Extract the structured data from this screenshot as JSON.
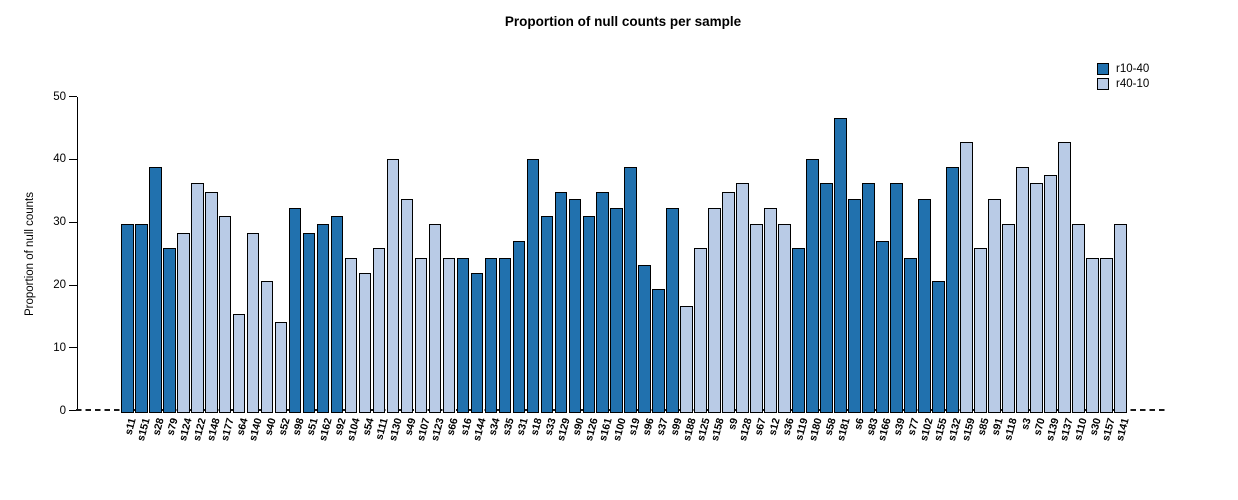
{
  "title": "Proportion of null counts per sample",
  "ylabel": "Proportion of null counts",
  "legend": {
    "items": [
      {
        "label": "r10-40",
        "color": "#2171ae"
      },
      {
        "label": "r40-10",
        "color": "#b9cbe6"
      }
    ]
  },
  "chart_data": {
    "type": "bar",
    "title": "Proportion of null counts per sample",
    "xlabel": "",
    "ylabel": "Proportion of null counts",
    "ylim": [
      0,
      50
    ],
    "yticks": [
      0,
      10,
      20,
      30,
      40,
      50
    ],
    "grid": false,
    "legend_position": "top-right",
    "series_names": [
      "r10-40",
      "r40-10"
    ],
    "colors": {
      "r10-40": "#2171ae",
      "r40-10": "#b9cbe6"
    },
    "categories": [
      "s11",
      "s151",
      "s28",
      "s79",
      "s124",
      "s122",
      "s148",
      "s177",
      "s64",
      "s140",
      "s40",
      "s52",
      "s98",
      "s51",
      "s162",
      "s92",
      "s104",
      "s54",
      "s111",
      "s130",
      "s49",
      "s107",
      "s123",
      "s66",
      "s16",
      "s144",
      "s34",
      "s35",
      "s31",
      "s18",
      "s33",
      "s129",
      "s90",
      "s126",
      "s161",
      "s100",
      "s19",
      "s96",
      "s37",
      "s99",
      "s188",
      "s125",
      "s158",
      "s9",
      "s128",
      "s67",
      "s12",
      "s36",
      "s119",
      "s180",
      "s58",
      "s181",
      "s6",
      "s83",
      "s166",
      "s39",
      "s77",
      "s102",
      "s155",
      "s132",
      "s159",
      "s85",
      "s91",
      "s118",
      "s3",
      "s70",
      "s139",
      "s137",
      "s110",
      "s30",
      "s157",
      "s141"
    ],
    "groups": [
      "r10-40",
      "r10-40",
      "r10-40",
      "r10-40",
      "r40-10",
      "r40-10",
      "r40-10",
      "r40-10",
      "r40-10",
      "r40-10",
      "r40-10",
      "r40-10",
      "r10-40",
      "r10-40",
      "r10-40",
      "r10-40",
      "r40-10",
      "r40-10",
      "r40-10",
      "r40-10",
      "r40-10",
      "r40-10",
      "r40-10",
      "r40-10",
      "r10-40",
      "r10-40",
      "r10-40",
      "r10-40",
      "r10-40",
      "r10-40",
      "r10-40",
      "r10-40",
      "r10-40",
      "r10-40",
      "r10-40",
      "r10-40",
      "r10-40",
      "r10-40",
      "r10-40",
      "r10-40",
      "r40-10",
      "r40-10",
      "r40-10",
      "r40-10",
      "r40-10",
      "r40-10",
      "r40-10",
      "r40-10",
      "r10-40",
      "r10-40",
      "r10-40",
      "r10-40",
      "r10-40",
      "r10-40",
      "r10-40",
      "r10-40",
      "r10-40",
      "r10-40",
      "r10-40",
      "r10-40",
      "r40-10",
      "r40-10",
      "r40-10",
      "r40-10",
      "r40-10",
      "r40-10",
      "r40-10",
      "r40-10",
      "r40-10",
      "r40-10",
      "r40-10",
      "r40-10"
    ],
    "values": [
      29.7,
      29.7,
      38.9,
      25.9,
      28.4,
      36.3,
      34.9,
      31.1,
      15.5,
      28.4,
      20.7,
      14.2,
      32.3,
      28.4,
      29.7,
      31.1,
      24.4,
      21.9,
      25.9,
      40.1,
      33.7,
      24.4,
      29.7,
      24.4,
      24.4,
      21.9,
      24.4,
      24.4,
      27.1,
      40.1,
      31.1,
      34.9,
      33.7,
      31.1,
      34.9,
      32.3,
      38.9,
      23.2,
      19.4,
      32.3,
      16.8,
      25.9,
      32.3,
      34.9,
      36.3,
      29.7,
      32.3,
      29.7,
      25.9,
      40.1,
      36.3,
      46.7,
      33.7,
      36.3,
      27.1,
      36.3,
      24.4,
      33.7,
      20.7,
      38.9,
      42.9,
      25.9,
      33.7,
      29.7,
      38.9,
      36.3,
      37.6,
      42.9,
      29.7,
      24.4,
      24.4,
      29.7
    ]
  }
}
